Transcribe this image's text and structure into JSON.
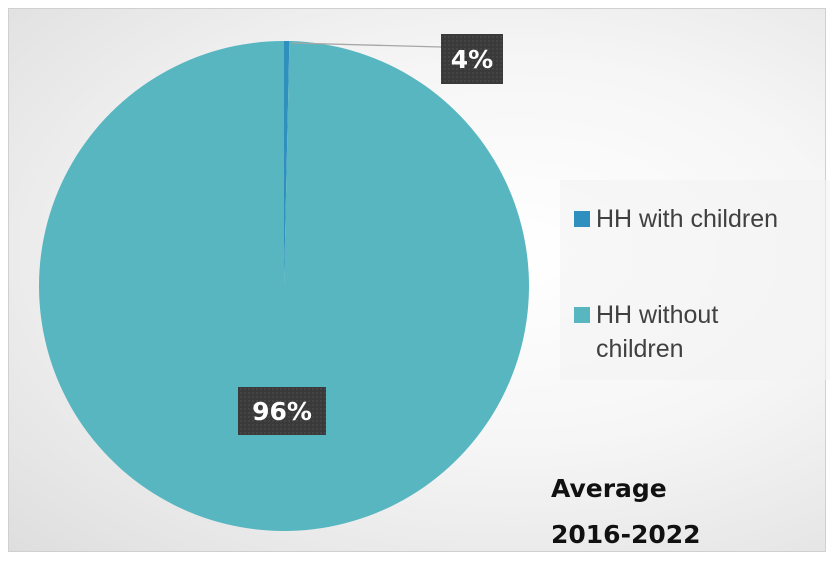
{
  "chart_data": {
    "type": "pie",
    "title": "",
    "caption_lines": [
      "Average",
      "2016-2022"
    ],
    "slices": [
      {
        "label": "HH with children",
        "value": 4,
        "data_label": "4%",
        "color": "#2f8fbf"
      },
      {
        "label": "HH without children",
        "value": 96,
        "data_label": "96%",
        "color": "#57b6c0"
      }
    ],
    "legend_position": "right",
    "data_label_style": {
      "background": "#3a3a3a",
      "text_color": "#ffffff"
    }
  }
}
